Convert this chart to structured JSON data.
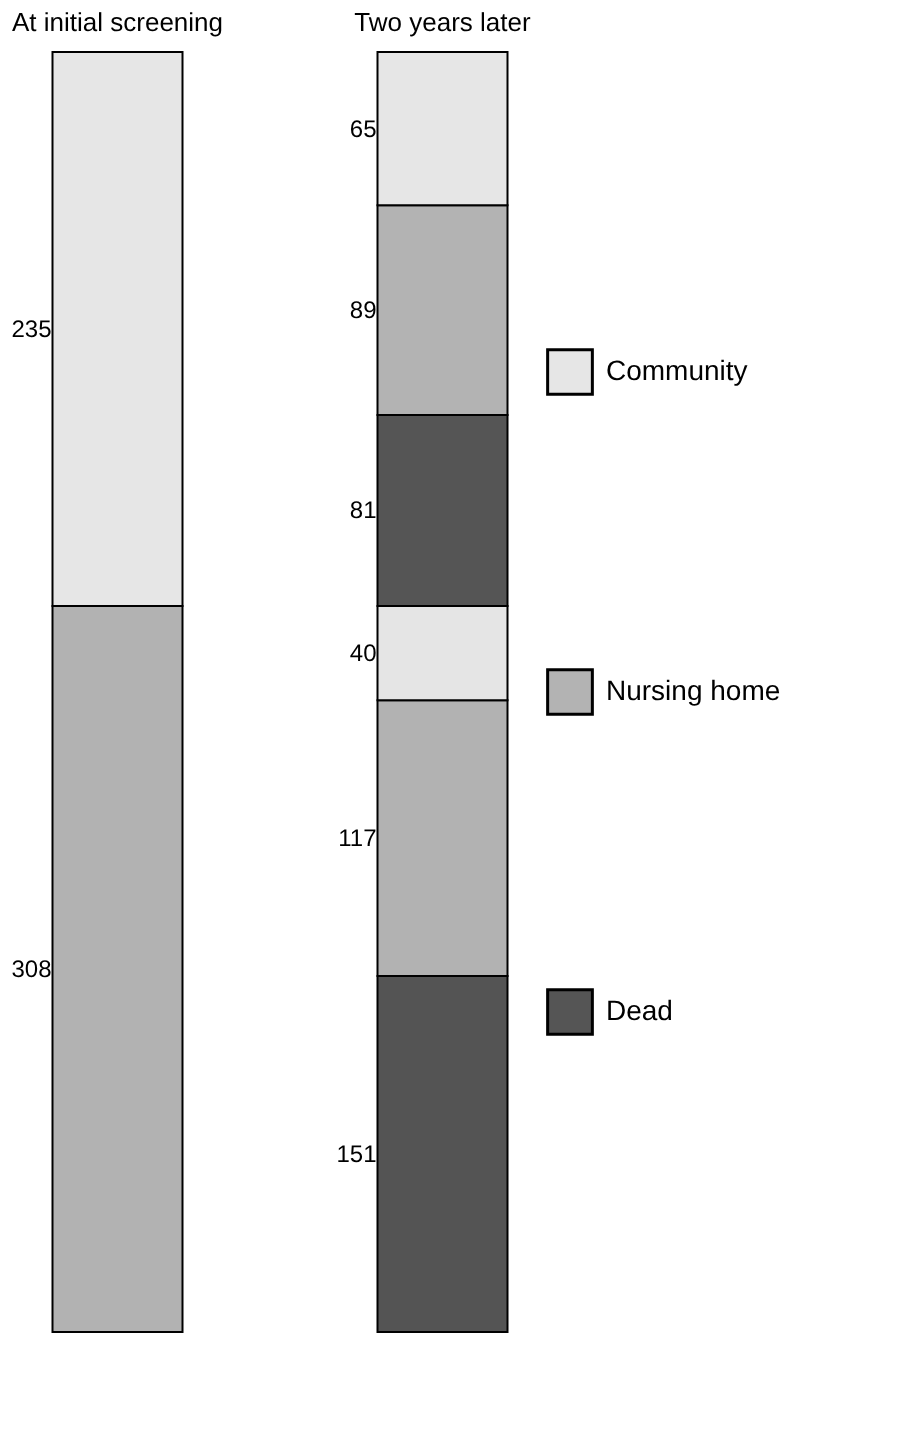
{
  "chart_data": {
    "type": "bar",
    "stacked": true,
    "data_labels": true,
    "legend": "right",
    "grid": false,
    "categories": [
      "At initial screening",
      "Two years later"
    ],
    "series": [
      {
        "color": "#545454",
        "values": [
          null,
          151
        ]
      },
      {
        "color": "#b2b2b2",
        "values": [
          308,
          117
        ]
      },
      {
        "color": "#e5e5e5",
        "values": [
          null,
          40
        ]
      },
      {
        "name": "Dead",
        "color": "#555555",
        "values": [
          null,
          81
        ]
      },
      {
        "name": "Nursing home",
        "color": "#b3b3b3",
        "values": [
          null,
          89
        ]
      },
      {
        "name": "Community",
        "color": "#e6e6e6",
        "values": [
          235,
          65
        ]
      }
    ]
  }
}
